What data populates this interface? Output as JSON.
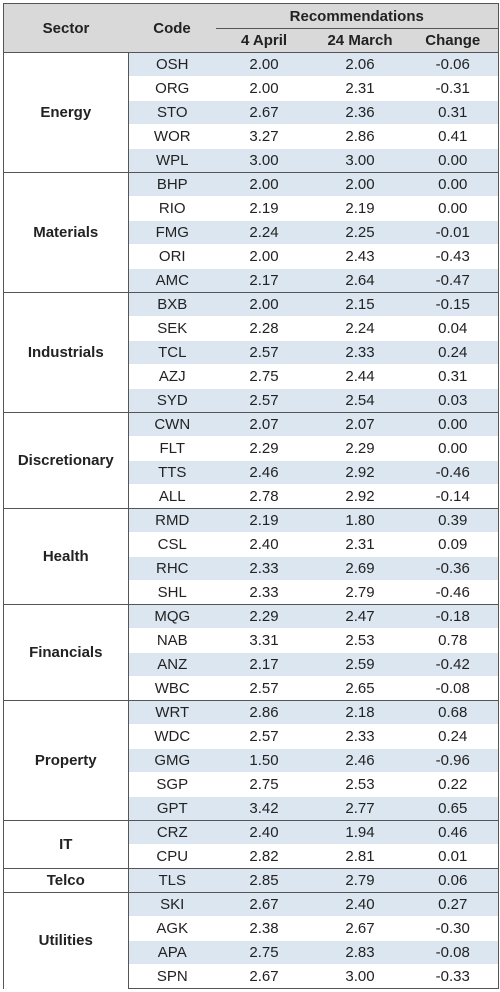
{
  "header": {
    "sector": "Sector",
    "code": "Code",
    "recommendations": "Recommendations",
    "col_april": "4 April",
    "col_march": "24 March",
    "col_change": "Change"
  },
  "sectors": [
    {
      "name": "Energy",
      "rows": [
        {
          "code": "OSH",
          "april": "2.00",
          "march": "2.06",
          "change": "-0.06"
        },
        {
          "code": "ORG",
          "april": "2.00",
          "march": "2.31",
          "change": "-0.31"
        },
        {
          "code": "STO",
          "april": "2.67",
          "march": "2.36",
          "change": "0.31"
        },
        {
          "code": "WOR",
          "april": "3.27",
          "march": "2.86",
          "change": "0.41"
        },
        {
          "code": "WPL",
          "april": "3.00",
          "march": "3.00",
          "change": "0.00"
        }
      ]
    },
    {
      "name": "Materials",
      "rows": [
        {
          "code": "BHP",
          "april": "2.00",
          "march": "2.00",
          "change": "0.00"
        },
        {
          "code": "RIO",
          "april": "2.19",
          "march": "2.19",
          "change": "0.00"
        },
        {
          "code": "FMG",
          "april": "2.24",
          "march": "2.25",
          "change": "-0.01"
        },
        {
          "code": "ORI",
          "april": "2.00",
          "march": "2.43",
          "change": "-0.43"
        },
        {
          "code": "AMC",
          "april": "2.17",
          "march": "2.64",
          "change": "-0.47"
        }
      ]
    },
    {
      "name": "Industrials",
      "rows": [
        {
          "code": "BXB",
          "april": "2.00",
          "march": "2.15",
          "change": "-0.15"
        },
        {
          "code": "SEK",
          "april": "2.28",
          "march": "2.24",
          "change": "0.04"
        },
        {
          "code": "TCL",
          "april": "2.57",
          "march": "2.33",
          "change": "0.24"
        },
        {
          "code": "AZJ",
          "april": "2.75",
          "march": "2.44",
          "change": "0.31"
        },
        {
          "code": "SYD",
          "april": "2.57",
          "march": "2.54",
          "change": "0.03"
        }
      ]
    },
    {
      "name": "Discretionary",
      "rows": [
        {
          "code": "CWN",
          "april": "2.07",
          "march": "2.07",
          "change": "0.00"
        },
        {
          "code": "FLT",
          "april": "2.29",
          "march": "2.29",
          "change": "0.00"
        },
        {
          "code": "TTS",
          "april": "2.46",
          "march": "2.92",
          "change": "-0.46"
        },
        {
          "code": "ALL",
          "april": "2.78",
          "march": "2.92",
          "change": "-0.14"
        }
      ]
    },
    {
      "name": "Health",
      "rows": [
        {
          "code": "RMD",
          "april": "2.19",
          "march": "1.80",
          "change": "0.39"
        },
        {
          "code": "CSL",
          "april": "2.40",
          "march": "2.31",
          "change": "0.09"
        },
        {
          "code": "RHC",
          "april": "2.33",
          "march": "2.69",
          "change": "-0.36"
        },
        {
          "code": "SHL",
          "april": "2.33",
          "march": "2.79",
          "change": "-0.46"
        }
      ]
    },
    {
      "name": "Financials",
      "rows": [
        {
          "code": "MQG",
          "april": "2.29",
          "march": "2.47",
          "change": "-0.18"
        },
        {
          "code": "NAB",
          "april": "3.31",
          "march": "2.53",
          "change": "0.78"
        },
        {
          "code": "ANZ",
          "april": "2.17",
          "march": "2.59",
          "change": "-0.42"
        },
        {
          "code": "WBC",
          "april": "2.57",
          "march": "2.65",
          "change": "-0.08"
        }
      ]
    },
    {
      "name": "Property",
      "rows": [
        {
          "code": "WRT",
          "april": "2.86",
          "march": "2.18",
          "change": "0.68"
        },
        {
          "code": "WDC",
          "april": "2.57",
          "march": "2.33",
          "change": "0.24"
        },
        {
          "code": "GMG",
          "april": "1.50",
          "march": "2.46",
          "change": "-0.96"
        },
        {
          "code": "SGP",
          "april": "2.75",
          "march": "2.53",
          "change": "0.22"
        },
        {
          "code": "GPT",
          "april": "3.42",
          "march": "2.77",
          "change": "0.65"
        }
      ]
    },
    {
      "name": "IT",
      "rows": [
        {
          "code": "CRZ",
          "april": "2.40",
          "march": "1.94",
          "change": "0.46"
        },
        {
          "code": "CPU",
          "april": "2.82",
          "march": "2.81",
          "change": "0.01"
        }
      ]
    },
    {
      "name": "Telco",
      "rows": [
        {
          "code": "TLS",
          "april": "2.85",
          "march": "2.79",
          "change": "0.06"
        }
      ]
    },
    {
      "name": "Utilities",
      "rows": [
        {
          "code": "SKI",
          "april": "2.67",
          "march": "2.40",
          "change": "0.27"
        },
        {
          "code": "AGK",
          "april": "2.38",
          "march": "2.67",
          "change": "-0.30"
        },
        {
          "code": "APA",
          "april": "2.75",
          "march": "2.83",
          "change": "-0.08"
        },
        {
          "code": "SPN",
          "april": "2.67",
          "march": "3.00",
          "change": "-0.33"
        }
      ]
    }
  ]
}
